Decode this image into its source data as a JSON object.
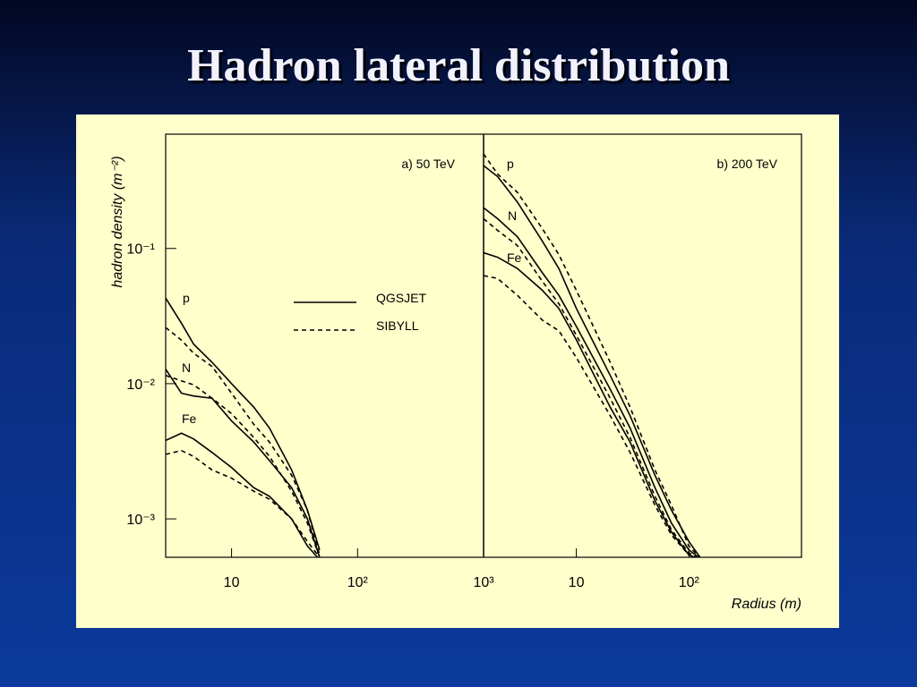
{
  "title": "Hadron lateral distribution",
  "chart_data": [
    {
      "type": "line",
      "annotation": "a) 50 TeV",
      "y_label": "hadron density (m⁻²)",
      "xlog": true,
      "ylog": true,
      "xlim": [
        3,
        1000
      ],
      "ylim": [
        0.00052,
        0.7
      ],
      "xticks": [
        10,
        {
          "value": 100,
          "label": "10²"
        },
        {
          "value": 1000,
          "label": "10³"
        }
      ],
      "yticks": [
        {
          "value": 0.1,
          "label": "10⁻¹"
        },
        {
          "value": 0.01,
          "label": "10⁻²"
        },
        {
          "value": 0.001,
          "label": "10⁻³"
        }
      ],
      "legend": [
        {
          "label": "QGSJET",
          "dash": "solid"
        },
        {
          "label": "SIBYLL",
          "dash": "dashed"
        }
      ],
      "color": "#000000",
      "x": [
        3,
        4,
        5,
        7,
        10,
        15,
        20,
        30,
        40,
        50
      ],
      "series": [
        {
          "name": "p",
          "models": [
            [
              0.043,
              0.028,
              0.0196,
              0.0144,
              0.01,
              0.0067,
              0.0047,
              0.0023,
              0.00116,
              0.00059
            ],
            [
              0.026,
              0.021,
              0.0168,
              0.0134,
              0.0085,
              0.005,
              0.0037,
              0.0021,
              0.00116,
              0.00054
            ]
          ]
        },
        {
          "name": "N",
          "models": [
            [
              0.0128,
              0.0085,
              0.0081,
              0.0078,
              0.0053,
              0.0037,
              0.0027,
              0.0017,
              0.001,
              0.00052
            ],
            [
              0.0115,
              0.0105,
              0.0098,
              0.0078,
              0.006,
              0.004,
              0.0029,
              0.0016,
              0.00093,
              0.00052
            ]
          ]
        },
        {
          "name": "Fe",
          "models": [
            [
              0.0038,
              0.0043,
              0.0039,
              0.0031,
              0.0024,
              0.0017,
              0.00147,
              0.001,
              0.00063,
              0.0005
            ],
            [
              0.003,
              0.0032,
              0.0029,
              0.0023,
              0.002,
              0.0016,
              0.0014,
              0.001,
              0.00068,
              0.00052
            ]
          ]
        }
      ]
    },
    {
      "type": "line",
      "annotation": "b) 200 TeV",
      "x_label": "Radius (m)",
      "xlog": true,
      "ylog": true,
      "xlim": [
        1.5,
        1000
      ],
      "ylim": [
        0.00052,
        0.7
      ],
      "xticks": [
        10,
        {
          "value": 100,
          "label": "10²"
        }
      ],
      "color": "#000000",
      "x": [
        1.5,
        2,
        3,
        5,
        7,
        10,
        20,
        30,
        50,
        70,
        100,
        130
      ],
      "series": [
        {
          "name": "p",
          "models": [
            [
              0.41,
              0.34,
              0.22,
              0.113,
              0.071,
              0.036,
              0.0115,
              0.0058,
              0.0021,
              0.00116,
              0.00068,
              0.0005
            ],
            [
              0.5,
              0.355,
              0.26,
              0.14,
              0.09,
              0.049,
              0.0144,
              0.0067,
              0.0023,
              0.00126,
              0.00063,
              0.0005
            ]
          ]
        },
        {
          "name": "N",
          "models": [
            [
              0.2,
              0.166,
              0.122,
              0.066,
              0.045,
              0.0265,
              0.0091,
              0.0047,
              0.0017,
              0.00093,
              0.00059,
              0.0005
            ],
            [
              0.166,
              0.136,
              0.105,
              0.057,
              0.039,
              0.0228,
              0.0078,
              0.004,
              0.00147,
              0.00083,
              0.00056,
              0.0005
            ]
          ]
        },
        {
          "name": "Fe",
          "models": [
            [
              0.093,
              0.086,
              0.071,
              0.049,
              0.036,
              0.0211,
              0.0067,
              0.0037,
              0.00136,
              0.0008,
              0.00054,
              0.0005
            ],
            [
              0.063,
              0.06,
              0.045,
              0.0295,
              0.0246,
              0.0156,
              0.0058,
              0.0031,
              0.00126,
              0.00076,
              0.00054,
              0.0005
            ]
          ]
        }
      ]
    }
  ]
}
